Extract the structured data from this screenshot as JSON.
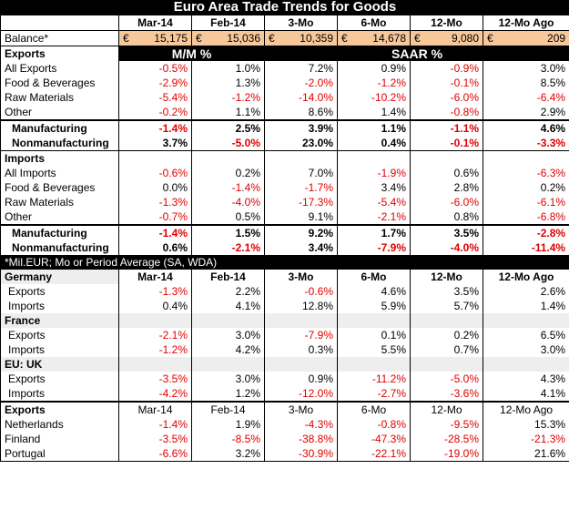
{
  "title": "Euro Area Trade Trends for Goods",
  "columns": [
    "Mar-14",
    "Feb-14",
    "3-Mo",
    "6-Mo",
    "12-Mo",
    "12-Mo Ago"
  ],
  "balance": {
    "label": "Balance*",
    "currency": "€",
    "values": [
      "15,175",
      "15,036",
      "10,359",
      "14,678",
      "9,080",
      "209"
    ]
  },
  "mm_label": "M/M %",
  "saar_label": "SAAR %",
  "exports": {
    "label": "Exports",
    "rows": [
      {
        "label": "All Exports",
        "values": [
          "-0.5%",
          "1.0%",
          "7.2%",
          "0.9%",
          "-0.9%",
          "3.0%"
        ]
      },
      {
        "label": "Food & Beverages",
        "values": [
          "-2.9%",
          "1.3%",
          "-2.0%",
          "-1.2%",
          "-0.1%",
          "8.5%"
        ]
      },
      {
        "label": "Raw Materials",
        "values": [
          "-5.4%",
          "-1.2%",
          "-14.0%",
          "-10.2%",
          "-6.0%",
          "-6.4%"
        ]
      },
      {
        "label": "Other",
        "values": [
          "-0.2%",
          "1.1%",
          "8.6%",
          "1.4%",
          "-0.8%",
          "2.9%"
        ]
      }
    ],
    "manufacturing": {
      "label": "Manufacturing",
      "values": [
        "-1.4%",
        "2.5%",
        "3.9%",
        "1.1%",
        "-1.1%",
        "4.6%"
      ]
    },
    "nonmanufacturing": {
      "label": "Nonmanufacturing",
      "values": [
        "3.7%",
        "-5.0%",
        "23.0%",
        "0.4%",
        "-0.1%",
        "-3.3%"
      ]
    }
  },
  "imports": {
    "label": "Imports",
    "rows": [
      {
        "label": "All Imports",
        "values": [
          "-0.6%",
          "0.2%",
          "7.0%",
          "-1.9%",
          "0.6%",
          "-6.3%"
        ]
      },
      {
        "label": "Food & Beverages",
        "values": [
          "0.0%",
          "-1.4%",
          "-1.7%",
          "3.4%",
          "2.8%",
          "0.2%"
        ]
      },
      {
        "label": "Raw Materials",
        "values": [
          "-1.3%",
          "-4.0%",
          "-17.3%",
          "-5.4%",
          "-6.0%",
          "-6.1%"
        ]
      },
      {
        "label": "Other",
        "values": [
          "-0.7%",
          "0.5%",
          "9.1%",
          "-2.1%",
          "0.8%",
          "-6.8%"
        ]
      }
    ],
    "manufacturing": {
      "label": "Manufacturing",
      "values": [
        "-1.4%",
        "1.5%",
        "9.2%",
        "1.7%",
        "3.5%",
        "-2.8%"
      ]
    },
    "nonmanufacturing": {
      "label": "Nonmanufacturing",
      "values": [
        "0.6%",
        "-2.1%",
        "3.4%",
        "-7.9%",
        "-4.0%",
        "-11.4%"
      ]
    }
  },
  "note": "*Mil.EUR; Mo or Period Average (SA, WDA)",
  "countries": [
    {
      "name": "Germany",
      "rows": [
        {
          "label": "Exports",
          "values": [
            "-1.3%",
            "2.2%",
            "-0.6%",
            "4.6%",
            "3.5%",
            "2.6%"
          ]
        },
        {
          "label": "Imports",
          "values": [
            "0.4%",
            "4.1%",
            "12.8%",
            "5.9%",
            "5.7%",
            "1.4%"
          ]
        }
      ]
    },
    {
      "name": "France",
      "rows": [
        {
          "label": "Exports",
          "values": [
            "-2.1%",
            "3.0%",
            "-7.9%",
            "0.1%",
            "0.2%",
            "6.5%"
          ]
        },
        {
          "label": "Imports",
          "values": [
            "-1.2%",
            "4.2%",
            "0.3%",
            "5.5%",
            "0.7%",
            "3.0%"
          ]
        }
      ]
    },
    {
      "name": "EU: UK",
      "rows": [
        {
          "label": "Exports",
          "values": [
            "-3.5%",
            "3.0%",
            "0.9%",
            "-11.2%",
            "-5.0%",
            "4.3%"
          ]
        },
        {
          "label": "Imports",
          "values": [
            "-4.2%",
            "1.2%",
            "-12.0%",
            "-2.7%",
            "-3.6%",
            "4.1%"
          ]
        }
      ]
    }
  ],
  "exports_by_country": {
    "label": "Exports",
    "rows": [
      {
        "label": "Netherlands",
        "values": [
          "-1.4%",
          "1.9%",
          "-4.3%",
          "-0.8%",
          "-9.5%",
          "15.3%"
        ]
      },
      {
        "label": "Finland",
        "values": [
          "-3.5%",
          "-8.5%",
          "-38.8%",
          "-47.3%",
          "-28.5%",
          "-21.3%"
        ]
      },
      {
        "label": "Portugal",
        "values": [
          "-6.6%",
          "3.2%",
          "-30.9%",
          "-22.1%",
          "-19.0%",
          "21.6%"
        ]
      }
    ]
  }
}
